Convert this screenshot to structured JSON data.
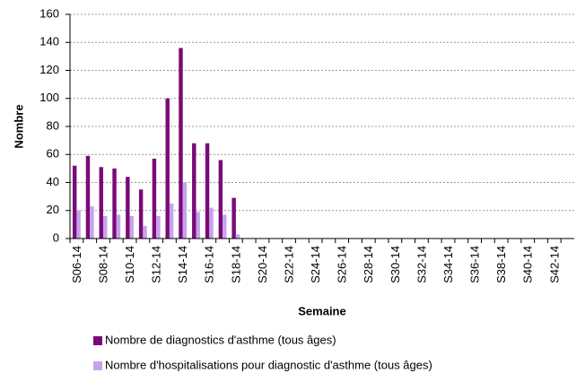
{
  "chart_data": {
    "type": "bar",
    "x_label": "Semaine",
    "y_label": "Nombre",
    "categories": [
      "S06-14",
      null,
      "S08-14",
      null,
      "S10-14",
      null,
      "S12-14",
      null,
      "S14-14",
      null,
      "S16-14",
      null,
      "S18-14",
      null,
      "S20-14",
      null,
      "S22-14",
      null,
      "S24-14",
      null,
      "S26-14",
      null,
      "S28-14",
      null,
      "S30-14",
      null,
      "S32-14",
      null,
      "S34-14",
      null,
      "S36-14",
      null,
      "S38-14",
      null,
      "S40-14",
      null,
      "S42-14",
      null
    ],
    "series": [
      {
        "name": "Nombre de diagnostics d'asthme (tous âges)",
        "color": "#7a0a78",
        "values": [
          52,
          59,
          51,
          50,
          44,
          35,
          57,
          100,
          136,
          68,
          68,
          56,
          29,
          null,
          null,
          null,
          null,
          null,
          null,
          null,
          null,
          null,
          null,
          null,
          null,
          null,
          null,
          null,
          null,
          null,
          null,
          null,
          null,
          null,
          null,
          null,
          null,
          null
        ]
      },
      {
        "name": "Nombre d'hospitalisations pour diagnostic d'asthme (tous âges)",
        "color": "#c8a2ee",
        "values": [
          20,
          23,
          16,
          17,
          16,
          9,
          16,
          25,
          40,
          19,
          22,
          17,
          3,
          null,
          null,
          null,
          null,
          null,
          null,
          null,
          null,
          null,
          null,
          null,
          null,
          null,
          null,
          null,
          null,
          null,
          null,
          null,
          null,
          null,
          null,
          null,
          null,
          null
        ]
      }
    ],
    "ylim": [
      0,
      160
    ],
    "yticks": [
      0,
      20,
      40,
      60,
      80,
      100,
      120,
      140,
      160
    ],
    "grid": true
  }
}
